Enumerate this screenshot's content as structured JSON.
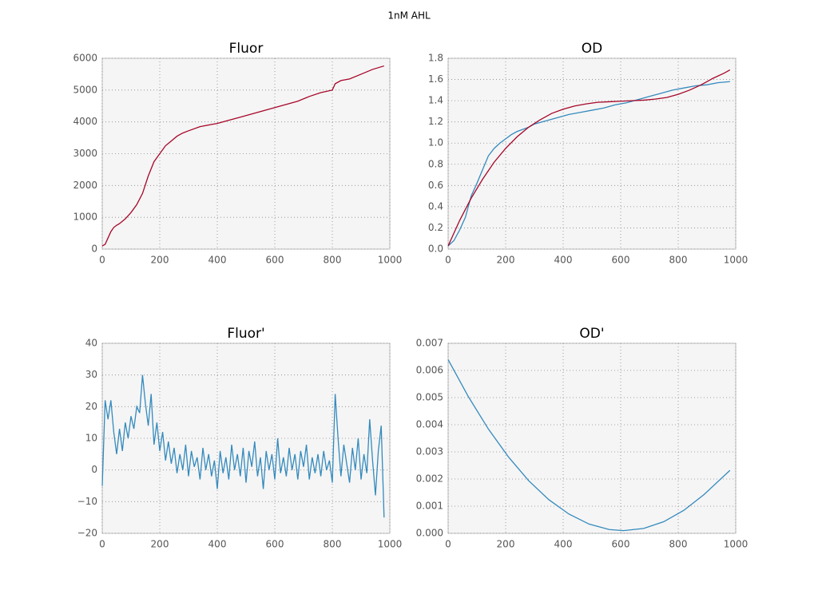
{
  "title": "1nM AHL",
  "chart_data": [
    {
      "type": "line",
      "title": "Fluor",
      "xlim": [
        0,
        1000
      ],
      "ylim": [
        0,
        6000
      ],
      "grid": true,
      "xticks": [
        0,
        200,
        400,
        600,
        800,
        1000
      ],
      "yticks": [
        0,
        1000,
        2000,
        3000,
        4000,
        5000,
        6000
      ],
      "series": [
        {
          "color": "#a60628",
          "x": [
            0,
            10,
            20,
            30,
            40,
            50,
            60,
            80,
            100,
            120,
            140,
            160,
            180,
            200,
            220,
            240,
            260,
            280,
            300,
            340,
            380,
            400,
            440,
            480,
            520,
            560,
            600,
            640,
            680,
            720,
            760,
            800,
            810,
            830,
            860,
            900,
            940,
            980
          ],
          "values": [
            100,
            150,
            350,
            550,
            680,
            750,
            800,
            950,
            1150,
            1400,
            1750,
            2300,
            2750,
            3000,
            3250,
            3400,
            3550,
            3650,
            3720,
            3850,
            3920,
            3950,
            4050,
            4150,
            4250,
            4350,
            4450,
            4550,
            4650,
            4800,
            4920,
            5000,
            5200,
            5300,
            5350,
            5500,
            5650,
            5760
          ]
        }
      ]
    },
    {
      "type": "line",
      "title": "OD",
      "xlim": [
        0,
        1000
      ],
      "ylim": [
        0,
        1.8
      ],
      "grid": true,
      "xticks": [
        0,
        200,
        400,
        600,
        800,
        1000
      ],
      "yticks": [
        {
          "value": 0,
          "label": "0.0"
        },
        0.2,
        0.4,
        0.6,
        0.8,
        {
          "value": 1,
          "label": "1.0"
        },
        1.2,
        1.4,
        1.6,
        1.8
      ],
      "series": [
        {
          "color": "#348abd",
          "x": [
            0,
            20,
            40,
            60,
            80,
            100,
            120,
            140,
            160,
            180,
            200,
            220,
            240,
            260,
            280,
            300,
            340,
            380,
            420,
            460,
            500,
            540,
            580,
            620,
            660,
            700,
            740,
            780,
            820,
            860,
            900,
            940,
            980
          ],
          "values": [
            0.03,
            0.08,
            0.18,
            0.3,
            0.5,
            0.62,
            0.75,
            0.88,
            0.95,
            1.0,
            1.04,
            1.08,
            1.11,
            1.13,
            1.15,
            1.18,
            1.21,
            1.24,
            1.27,
            1.29,
            1.31,
            1.33,
            1.36,
            1.38,
            1.41,
            1.44,
            1.47,
            1.5,
            1.52,
            1.54,
            1.55,
            1.57,
            1.58
          ]
        },
        {
          "color": "#a60628",
          "x": [
            0,
            40,
            80,
            120,
            160,
            200,
            240,
            280,
            320,
            360,
            400,
            440,
            480,
            520,
            560,
            600,
            640,
            680,
            720,
            760,
            800,
            840,
            880,
            920,
            960,
            980
          ],
          "values": [
            0.03,
            0.27,
            0.48,
            0.66,
            0.82,
            0.95,
            1.06,
            1.15,
            1.22,
            1.28,
            1.32,
            1.35,
            1.37,
            1.385,
            1.39,
            1.395,
            1.4,
            1.405,
            1.415,
            1.43,
            1.46,
            1.5,
            1.55,
            1.61,
            1.66,
            1.69
          ]
        }
      ]
    },
    {
      "type": "line",
      "title": "Fluor'",
      "xlim": [
        0,
        1000
      ],
      "ylim": [
        -20,
        40
      ],
      "grid": true,
      "xticks": [
        0,
        200,
        400,
        600,
        800,
        1000
      ],
      "yticks": [
        {
          "value": -20,
          "label": "−20"
        },
        {
          "value": -10,
          "label": "−10"
        },
        0,
        10,
        20,
        30,
        40
      ],
      "series": [
        {
          "color": "#348abd",
          "x": [
            0,
            10,
            20,
            30,
            40,
            50,
            60,
            70,
            80,
            90,
            100,
            110,
            120,
            130,
            140,
            150,
            160,
            170,
            180,
            190,
            200,
            210,
            220,
            230,
            240,
            250,
            260,
            270,
            280,
            290,
            300,
            310,
            320,
            330,
            340,
            350,
            360,
            370,
            380,
            390,
            400,
            410,
            420,
            430,
            440,
            450,
            460,
            470,
            480,
            490,
            500,
            510,
            520,
            530,
            540,
            550,
            560,
            570,
            580,
            590,
            600,
            610,
            620,
            630,
            640,
            650,
            660,
            670,
            680,
            690,
            700,
            710,
            720,
            730,
            740,
            750,
            760,
            770,
            780,
            790,
            800,
            810,
            820,
            830,
            840,
            850,
            860,
            870,
            880,
            890,
            900,
            910,
            920,
            930,
            940,
            950,
            960,
            970,
            980
          ],
          "values": [
            -5,
            22,
            16,
            22,
            12,
            5,
            13,
            6,
            15,
            10,
            17,
            13,
            20,
            18,
            30,
            21,
            14,
            24,
            8,
            15,
            6,
            12,
            3,
            9,
            2,
            7,
            -1,
            5,
            0,
            8,
            -2,
            6,
            1,
            4,
            -3,
            7,
            0,
            5,
            -2,
            3,
            -6,
            6,
            -1,
            4,
            -3,
            8,
            0,
            5,
            -2,
            7,
            -4,
            6,
            1,
            9,
            -2,
            4,
            -6,
            6,
            0,
            5,
            -3,
            10,
            -1,
            4,
            -2,
            7,
            0,
            5,
            -3,
            6,
            1,
            8,
            -3,
            4,
            -1,
            5,
            -2,
            6,
            0,
            3,
            -4,
            24,
            10,
            -2,
            8,
            2,
            -4,
            7,
            0,
            10,
            -3,
            5,
            -1,
            16,
            3,
            -8,
            6,
            14,
            -15
          ]
        }
      ]
    },
    {
      "type": "line",
      "title": "OD'",
      "xlim": [
        0,
        1000
      ],
      "ylim": [
        0,
        0.007
      ],
      "grid": true,
      "xticks": [
        0,
        200,
        400,
        600,
        800,
        1000
      ],
      "yticks": [
        {
          "value": 0,
          "label": "0.000"
        },
        0.001,
        0.002,
        0.003,
        0.004,
        0.005,
        0.006,
        0.007
      ],
      "series": [
        {
          "color": "#348abd",
          "x": [
            0,
            70,
            140,
            210,
            280,
            350,
            420,
            490,
            560,
            610,
            680,
            750,
            820,
            890,
            980
          ],
          "values": [
            0.0064,
            0.00504,
            0.00384,
            0.00281,
            0.00194,
            0.00124,
            0.00071,
            0.00034,
            0.00014,
            0.0001,
            0.00018,
            0.00043,
            0.00085,
            0.00143,
            0.00232
          ]
        }
      ]
    }
  ]
}
